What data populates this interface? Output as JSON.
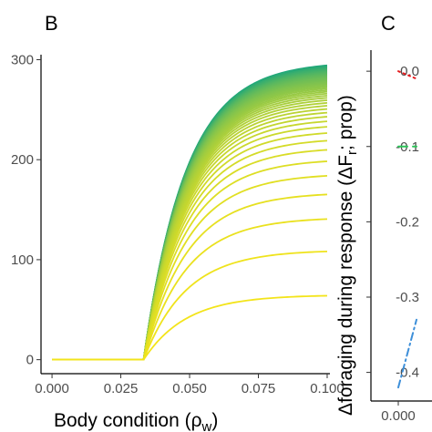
{
  "chart_data": [
    {
      "type": "line",
      "panel_label": "B",
      "xlabel": "Body condition (ρ",
      "xlabel_sub": "w",
      "xlabel_close": ")",
      "ylabel": "",
      "xlim": [
        -0.004,
        0.101
      ],
      "ylim": [
        -14,
        305
      ],
      "x_ticks": [
        0.0,
        0.025,
        0.05,
        0.075,
        0.1
      ],
      "x_tick_labels": [
        "0.000",
        "0.025",
        "0.050",
        "0.075",
        "0.100"
      ],
      "y_ticks": [
        0,
        100,
        200,
        300
      ],
      "y_tick_labels": [
        "0",
        "100",
        "200",
        "300"
      ],
      "grid": false,
      "legend": "none",
      "threshold_x": 0.0333,
      "saturation_rate": 65,
      "color_low": "#f3e41a",
      "color_high": "#1fa77a",
      "series_asymptotes": [
        64.8,
        109.7,
        142.5,
        167.4,
        186.3,
        201.0,
        212.6,
        221.9,
        229.6,
        236.0,
        241.5,
        246.2,
        250.3,
        254.0,
        257.3,
        260.2,
        262.9,
        265.3,
        267.5,
        269.6,
        271.5,
        273.2,
        274.9,
        276.4,
        277.8,
        279.2,
        280.5,
        281.7,
        282.8,
        283.9,
        285.0,
        286.0,
        287.0,
        287.9,
        288.8,
        289.6,
        290.4,
        291.2,
        291.9,
        292.6,
        293.3,
        294.0,
        294.7,
        295.3,
        295.9,
        296.5,
        297.1,
        297.6,
        298.2
      ]
    },
    {
      "type": "line",
      "panel_label": "C",
      "ylabel": "Δforaging during response (ΔF",
      "ylabel_sub": "r",
      "ylabel_close": "; prop)",
      "xlabel": "",
      "ylim": [
        -0.438,
        0.028
      ],
      "y_ticks": [
        0.0,
        -0.1,
        -0.2,
        -0.3,
        -0.4
      ],
      "y_tick_labels": [
        "0.0",
        "-0.1",
        "-0.2",
        "-0.3",
        "-0.4"
      ],
      "x_tick_labels": [
        "0.000"
      ],
      "series": [
        {
          "style": "dotted",
          "color": "#e41a1c",
          "x": [
            0.0,
            0.01
          ],
          "values": [
            0.0,
            -0.01
          ]
        },
        {
          "style": "dashed",
          "color": "#2ec55a",
          "x": [
            0.0,
            0.01
          ],
          "values": [
            -0.1,
            -0.1
          ]
        },
        {
          "style": "dashdot",
          "color": "#3d8fd9",
          "x": [
            0.0,
            0.01
          ],
          "values": [
            -0.42,
            -0.33
          ]
        }
      ]
    }
  ]
}
